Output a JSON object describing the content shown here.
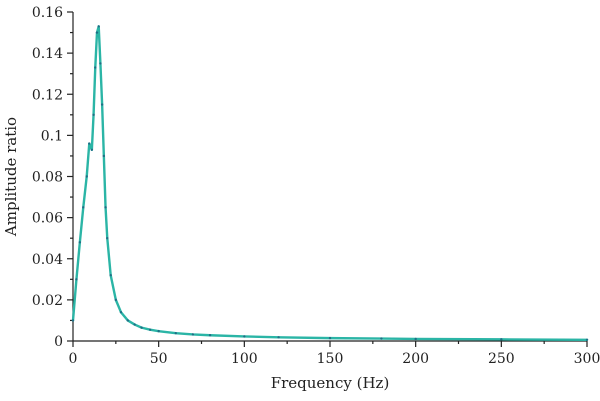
{
  "chart_data": {
    "type": "line",
    "title": "",
    "xlabel": "Frequency (Hz)",
    "ylabel": "Amplitude ratio",
    "xlim": [
      0,
      300
    ],
    "ylim": [
      0,
      0.16
    ],
    "grid": false,
    "legend": "none",
    "x_ticks": [
      0,
      50,
      100,
      150,
      200,
      250,
      300
    ],
    "x_tick_labels": [
      "0",
      "50",
      "100",
      "150",
      "200",
      "250",
      "300"
    ],
    "y_ticks": [
      0,
      0.02,
      0.04,
      0.06,
      0.08,
      0.1,
      0.12,
      0.14,
      0.16
    ],
    "y_tick_labels": [
      "0",
      "0.02",
      "0.04",
      "0.06",
      "0.08",
      "0.1",
      "0.12",
      "0.14",
      "0.16"
    ],
    "series": [
      {
        "color": "#2bb5a6",
        "marker_color": "#1f6f86",
        "x": [
          0,
          2,
          4,
          6,
          8,
          9.5,
          11,
          12,
          13,
          14,
          15,
          16,
          17,
          18,
          19,
          20,
          22,
          25,
          28,
          32,
          36,
          40,
          45,
          50,
          60,
          70,
          80,
          100,
          120,
          150,
          180,
          200,
          250,
          300
        ],
        "y": [
          0.01,
          0.03,
          0.048,
          0.065,
          0.08,
          0.096,
          0.093,
          0.11,
          0.133,
          0.15,
          0.153,
          0.135,
          0.115,
          0.09,
          0.065,
          0.05,
          0.032,
          0.02,
          0.014,
          0.01,
          0.008,
          0.0065,
          0.0055,
          0.0048,
          0.0038,
          0.0032,
          0.0028,
          0.0022,
          0.0018,
          0.0014,
          0.0012,
          0.001,
          0.0008,
          0.0006
        ]
      }
    ]
  }
}
